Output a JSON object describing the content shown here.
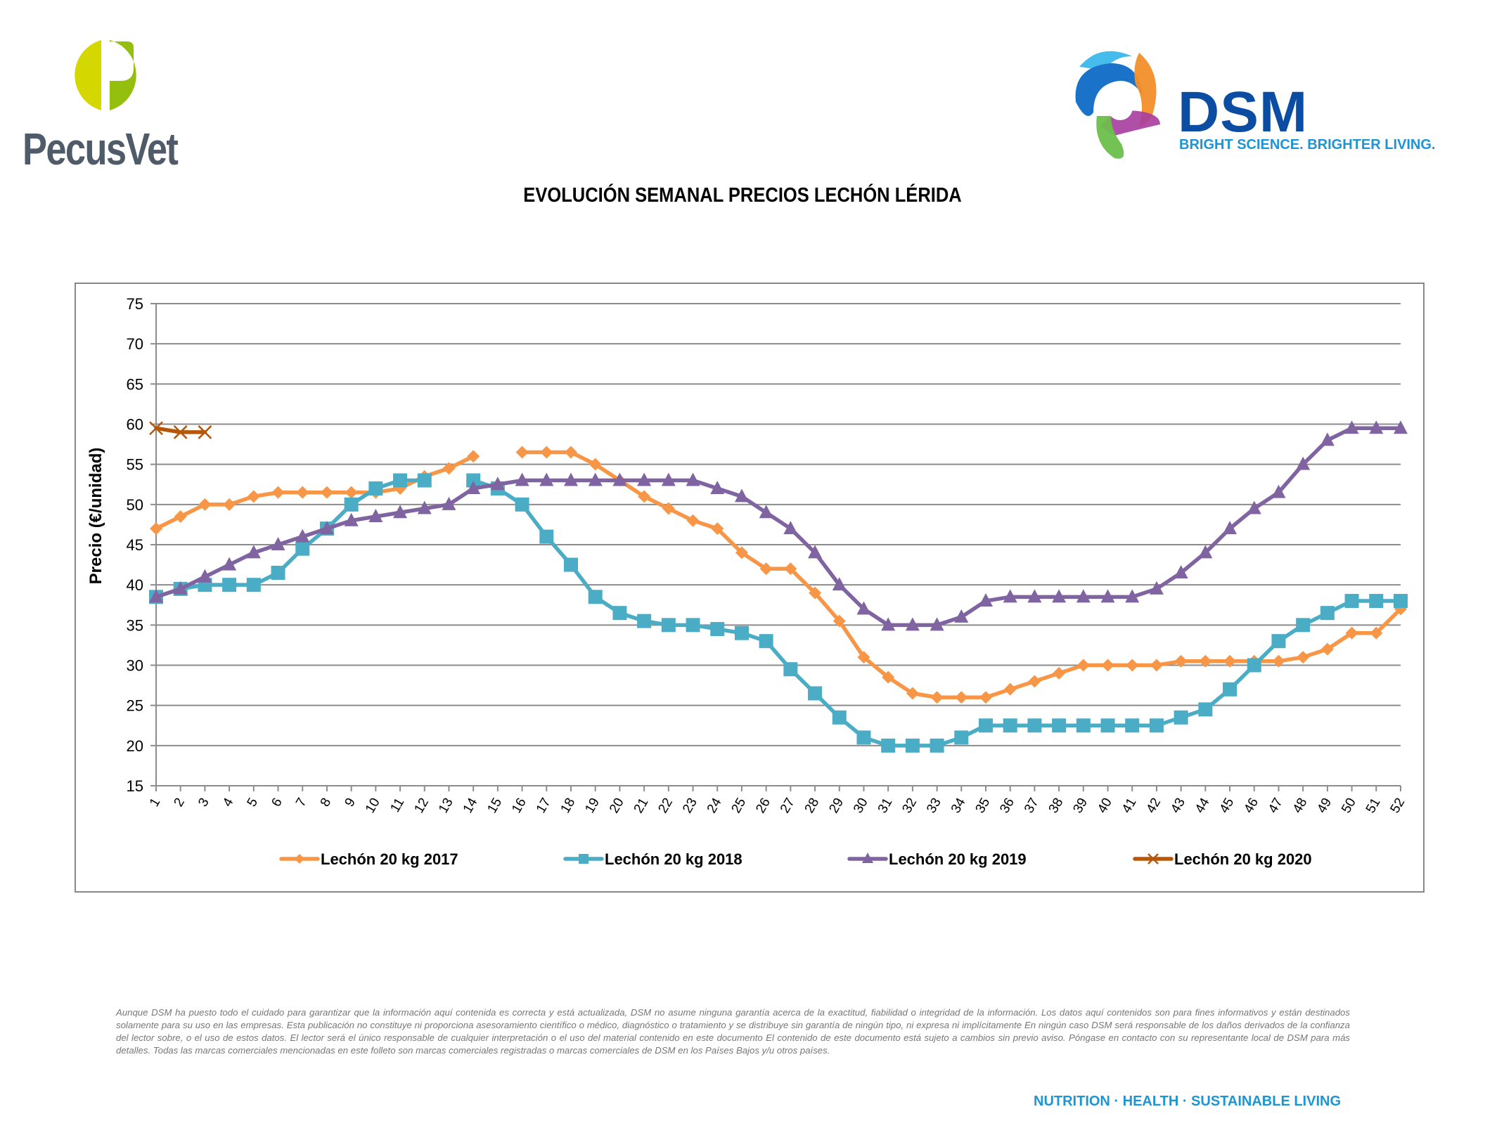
{
  "header": {
    "left_logo": {
      "name": "PecusVet",
      "colors": [
        "#d4d800",
        "#95bf0f"
      ],
      "text_color": "#4f5b69"
    },
    "right_logo": {
      "name": "DSM",
      "tagline": "BRIGHT SCIENCE. BRIGHTER LIVING.",
      "word_color": "#0a4da2",
      "tag_color": "#1b95d6"
    }
  },
  "document_title": "EVOLUCIÓN SEMANAL PRECIOS LECHÓN LÉRIDA",
  "chart_data": {
    "type": "line",
    "title": "",
    "xlabel": "",
    "ylabel": "Precio (€/unidad)",
    "ylim": [
      15,
      75
    ],
    "yticks": [
      15,
      20,
      25,
      30,
      35,
      40,
      45,
      50,
      55,
      60,
      65,
      70,
      75
    ],
    "grid": true,
    "legend": "bottom",
    "x": [
      1,
      2,
      3,
      4,
      5,
      6,
      7,
      8,
      9,
      10,
      11,
      12,
      13,
      14,
      15,
      16,
      17,
      18,
      19,
      20,
      21,
      22,
      23,
      24,
      25,
      26,
      27,
      28,
      29,
      30,
      31,
      32,
      33,
      34,
      35,
      36,
      37,
      38,
      39,
      40,
      41,
      42,
      43,
      44,
      45,
      46,
      47,
      48,
      49,
      50,
      51,
      52
    ],
    "series": [
      {
        "name": "Lechón 20 kg 2017",
        "color": "#f79646",
        "marker": "diamond",
        "values": [
          47,
          48.5,
          50,
          50,
          51,
          51.5,
          51.5,
          51.5,
          51.5,
          51.5,
          52,
          53.5,
          54.5,
          56,
          null,
          56.5,
          56.5,
          56.5,
          55,
          53,
          51,
          49.5,
          48,
          47,
          44,
          42,
          42,
          39,
          35.5,
          31,
          28.5,
          26.5,
          26,
          26,
          26,
          27,
          28,
          29,
          30,
          30,
          30,
          30,
          30.5,
          30.5,
          30.5,
          30.5,
          30.5,
          31,
          32,
          34,
          34,
          37
        ]
      },
      {
        "name": "Lechón 20 kg 2018",
        "color": "#4bacc6",
        "marker": "square",
        "values": [
          38.5,
          39.5,
          40,
          40,
          40,
          41.5,
          44.5,
          47,
          50,
          52,
          53,
          53,
          null,
          53,
          52,
          50,
          46,
          42.5,
          38.5,
          36.5,
          35.5,
          35,
          35,
          34.5,
          34,
          33,
          29.5,
          26.5,
          23.5,
          21,
          20,
          20,
          20,
          21,
          22.5,
          22.5,
          22.5,
          22.5,
          22.5,
          22.5,
          22.5,
          22.5,
          23.5,
          24.5,
          27,
          30,
          33,
          35,
          36.5,
          38,
          38,
          38
        ]
      },
      {
        "name": "Lechón 20 kg 2019",
        "color": "#8064a2",
        "marker": "triangle",
        "values": [
          38.5,
          39.5,
          41,
          42.5,
          44,
          45,
          46,
          47,
          48,
          48.5,
          49,
          49.5,
          50,
          52,
          52.5,
          53,
          53,
          53,
          53,
          53,
          53,
          53,
          53,
          52,
          51,
          49,
          47,
          44,
          40,
          37,
          35,
          35,
          35,
          36,
          38,
          38.5,
          38.5,
          38.5,
          38.5,
          38.5,
          38.5,
          39.5,
          41.5,
          44,
          47,
          49.5,
          51.5,
          55,
          58,
          59.5,
          59.5,
          59.5
        ]
      },
      {
        "name": "Lechón 20 kg 2020",
        "color": "#b65708",
        "marker": "x",
        "values": [
          59.5,
          59,
          59
        ]
      }
    ]
  },
  "disclaimer": "Aunque DSM ha puesto todo el cuidado para garantizar que la información aquí contenida es correcta y está actualizada, DSM no asume ninguna garantía acerca de la exactitud, fiabilidad o integridad de la información. Los datos aquí contenidos son para fines informativos y están destinados solamente para su uso en las empresas. Esta publicación no constituye ni proporciona asesoramiento científico o médico, diagnóstico o tratamiento y se distribuye sin garantía de ningún tipo, ni expresa ni implícitamente En ningún caso DSM será responsable de los daños derivados de la confianza del lector sobre, o el uso de estos datos. El lector será el único responsable de cualquier interpretación o el uso del material contenido en este documento El contenido de este documento está sujeto a cambios sin previo aviso. Póngase en contacto con su representante local de DSM para más detalles. Todas las marcas comerciales mencionadas en este folleto son marcas comerciales registradas o marcas comerciales de DSM en los Países Bajos y/u otros países.",
  "footer_tagline": "NUTRITION · HEALTH · SUSTAINABLE LIVING"
}
